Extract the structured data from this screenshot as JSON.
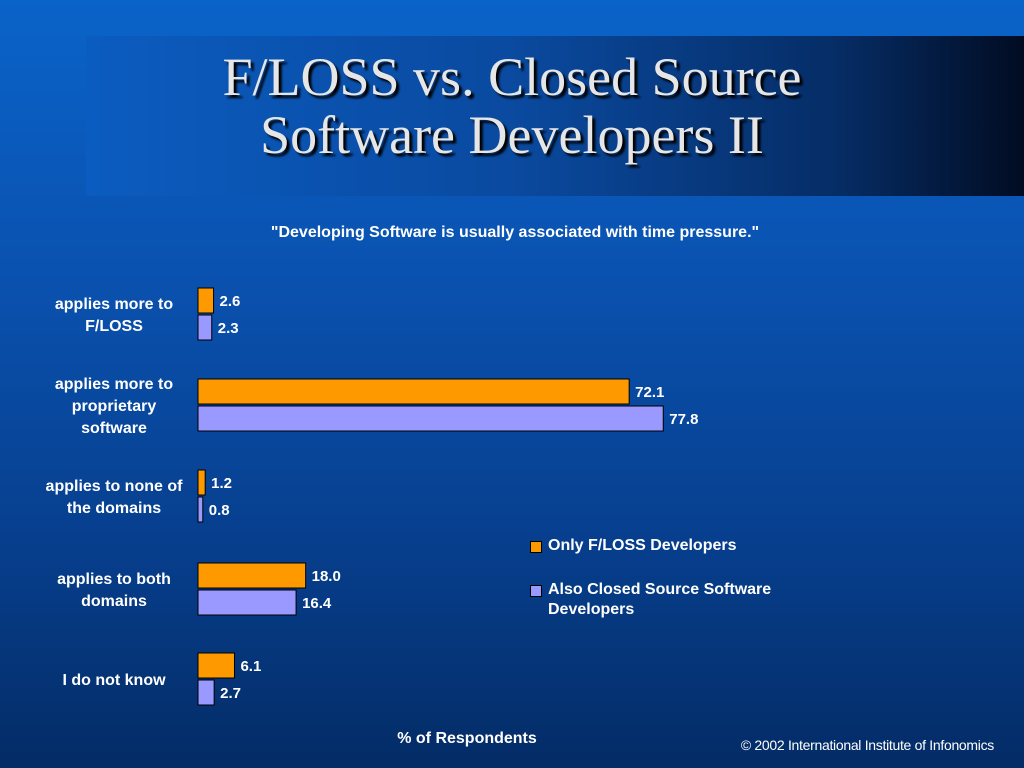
{
  "slide": {
    "title_line1": "F/LOSS vs. Closed Source",
    "title_line2": "Software Developers II",
    "copyright": "© 2002 International Institute of Infonomics"
  },
  "chart_data": {
    "type": "bar",
    "orientation": "horizontal",
    "title": "\"Developing Software is usually associated with time pressure.\"",
    "xlabel": "% of Respondents",
    "ylabel": "",
    "categories": [
      [
        "applies more to",
        "F/LOSS"
      ],
      [
        "applies more to",
        "proprietary",
        "software"
      ],
      [
        "applies to none of",
        "the domains"
      ],
      [
        "applies to both",
        "domains"
      ],
      [
        "I do not know"
      ]
    ],
    "xlim": [
      0,
      100
    ],
    "grid": false,
    "legend_position": "right",
    "series": [
      {
        "name": "Only F/LOSS Developers",
        "color": "#ff9900",
        "values": [
          2.6,
          72.1,
          1.2,
          18.0,
          6.1
        ]
      },
      {
        "name": "Also Closed Source Software Developers",
        "name_lines": [
          "Also Closed Source Software",
          "Developers"
        ],
        "color": "#9999ff",
        "values": [
          2.3,
          77.8,
          0.8,
          16.4,
          2.7
        ]
      }
    ]
  }
}
